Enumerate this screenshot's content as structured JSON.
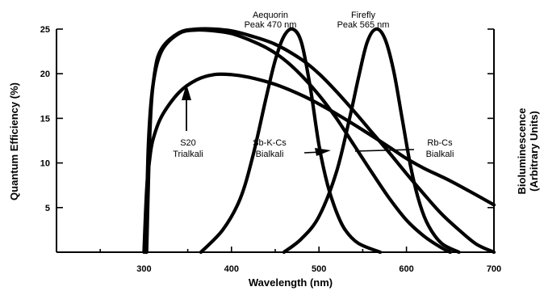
{
  "chart_data": {
    "type": "line",
    "xlabel": "Wavelength (nm)",
    "ylabel": "Quantum Efficiency (%)",
    "y2label": [
      "Bioluminescence",
      "(Arbitrary Units)"
    ],
    "xlim": [
      200,
      700
    ],
    "ylim": [
      0,
      25
    ],
    "xticks": [
      300,
      400,
      500,
      600,
      700
    ],
    "yticks": [
      5,
      10,
      15,
      20,
      25
    ],
    "grid": false,
    "series": [
      {
        "name": "S20 Trialkali",
        "x": [
          300,
          303,
          306,
          310,
          320,
          340,
          360,
          380,
          400,
          420,
          450,
          480,
          500,
          520,
          550,
          580,
          600,
          620,
          650,
          680,
          700
        ],
        "y": [
          0,
          7,
          10,
          12.5,
          15.2,
          17.9,
          19.3,
          19.9,
          19.9,
          19.6,
          18.8,
          17.6,
          16.6,
          15.5,
          13.7,
          11.8,
          10.5,
          9.4,
          8,
          6.4,
          5.3
        ]
      },
      {
        "name": "Sb-K-Cs Bialkali",
        "x": [
          302,
          305,
          310,
          320,
          340,
          360,
          380,
          400,
          420,
          440,
          460,
          480,
          500,
          520,
          540,
          560,
          580,
          600,
          620,
          640,
          650
        ],
        "y": [
          0,
          12,
          18.5,
          22.5,
          24.5,
          24.9,
          24.8,
          24.5,
          23.8,
          22.9,
          21.6,
          19.8,
          17.6,
          15,
          12,
          9,
          6.1,
          3.6,
          1.8,
          0.5,
          0
        ]
      },
      {
        "name": "Rb-Cs Bialkali",
        "x": [
          303,
          307,
          312,
          320,
          340,
          360,
          380,
          400,
          420,
          450,
          480,
          500,
          520,
          540,
          560,
          580,
          600,
          620,
          640,
          660,
          680,
          700
        ],
        "y": [
          0,
          14,
          20,
          22.8,
          24.6,
          25,
          25,
          24.8,
          24.3,
          23.3,
          21.6,
          20,
          18,
          15.8,
          13.5,
          11.2,
          8.8,
          6.5,
          4.3,
          2.5,
          0.9,
          0
        ]
      },
      {
        "name": "Aequorin",
        "x": [
          365,
          390,
          410,
          425,
          440,
          450,
          460,
          470,
          480,
          490,
          500,
          510,
          520,
          530,
          545,
          570
        ],
        "y": [
          0,
          2.5,
          6,
          11,
          17.5,
          21.5,
          24.2,
          25,
          23.5,
          18.5,
          12,
          7.5,
          4.5,
          2.5,
          1,
          0
        ]
      },
      {
        "name": "Firefly",
        "x": [
          460,
          480,
          500,
          520,
          535,
          545,
          555,
          565,
          575,
          585,
          595,
          605,
          615,
          625,
          640,
          660
        ],
        "y": [
          0,
          1.5,
          4,
          9,
          15,
          19.5,
          23.5,
          25,
          24,
          20.5,
          15,
          9.5,
          5.5,
          3,
          1,
          0
        ]
      }
    ],
    "annotations": [
      {
        "lines": [
          "Aequorin",
          "Peak 470 nm"
        ]
      },
      {
        "lines": [
          "Firefly",
          "Peak 565 nm"
        ]
      },
      {
        "lines": [
          "S20",
          "Trialkali"
        ]
      },
      {
        "lines": [
          "Sb-K-Cs",
          "Bialkali"
        ]
      },
      {
        "lines": [
          "Rb-Cs",
          "Bialkali"
        ]
      }
    ]
  }
}
